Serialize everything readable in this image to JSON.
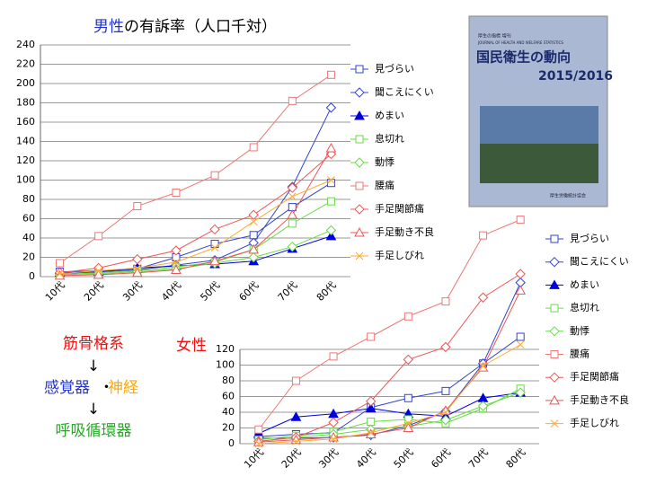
{
  "chart_data": [
    {
      "type": "line",
      "title_parts": [
        "男性",
        "の有訴率（人口千対）"
      ],
      "categories": [
        "10代",
        "20代",
        "30代",
        "40代",
        "50代",
        "60代",
        "70代",
        "80代"
      ],
      "ylim": [
        0,
        240
      ],
      "yticks": [
        0,
        20,
        40,
        60,
        80,
        100,
        120,
        140,
        160,
        180,
        200,
        220,
        240
      ],
      "grid": true,
      "legend": "right",
      "series": [
        {
          "name": "見づらい",
          "color": "#3344cc",
          "marker": "square",
          "values": [
            5,
            6,
            8,
            20,
            34,
            43,
            72,
            97
          ]
        },
        {
          "name": "聞こえにくい",
          "color": "#3344cc",
          "marker": "diamond",
          "values": [
            3,
            5,
            7,
            12,
            17,
            35,
            93,
            175
          ]
        },
        {
          "name": "めまい",
          "color": "#0000dd",
          "marker": "triangle-filled",
          "values": [
            4,
            5,
            9,
            11,
            13,
            16,
            29,
            42
          ]
        },
        {
          "name": "息切れ",
          "color": "#66dd44",
          "marker": "square",
          "values": [
            2,
            4,
            6,
            10,
            15,
            28,
            55,
            78
          ]
        },
        {
          "name": "動悸",
          "color": "#66dd44",
          "marker": "diamond",
          "values": [
            2,
            3,
            5,
            8,
            14,
            20,
            31,
            48
          ]
        },
        {
          "name": "腰痛",
          "color": "#ee7777",
          "marker": "square",
          "values": [
            14,
            42,
            73,
            87,
            105,
            134,
            182,
            209
          ]
        },
        {
          "name": "手足関節痛",
          "color": "#ee5555",
          "marker": "diamond",
          "values": [
            4,
            9,
            18,
            27,
            49,
            64,
            92,
            127
          ]
        },
        {
          "name": "手足動き不良",
          "color": "#ee5555",
          "marker": "triangle",
          "values": [
            1,
            2,
            4,
            7,
            16,
            28,
            64,
            133
          ]
        },
        {
          "name": "手足しびれ",
          "color": "#ffaa33",
          "marker": "x",
          "values": [
            3,
            6,
            9,
            15,
            30,
            57,
            83,
            100
          ]
        }
      ]
    },
    {
      "type": "line",
      "title_parts": [
        "女性"
      ],
      "categories": [
        "10代",
        "20代",
        "30代",
        "40代",
        "50代",
        "60代",
        "70代",
        "80代"
      ],
      "ylim": [
        0,
        280
      ],
      "yticks": [
        0,
        20,
        40,
        60,
        80,
        100,
        120
      ],
      "grid": true,
      "legend": "right",
      "series": [
        {
          "name": "見づらい",
          "color": "#3344cc",
          "marker": "square",
          "values": [
            9,
            12,
            14,
            46,
            58,
            67,
            102,
            136
          ]
        },
        {
          "name": "聞こえにくい",
          "color": "#3344cc",
          "marker": "diamond",
          "values": [
            7,
            7,
            8,
            11,
            23,
            41,
            102,
            205
          ]
        },
        {
          "name": "めまい",
          "color": "#0000dd",
          "marker": "triangle-filled",
          "values": [
            13,
            34,
            38,
            45,
            38,
            35,
            58,
            65
          ]
        },
        {
          "name": "息切れ",
          "color": "#66dd44",
          "marker": "square",
          "values": [
            5,
            10,
            15,
            28,
            31,
            26,
            45,
            70
          ]
        },
        {
          "name": "動悸",
          "color": "#66dd44",
          "marker": "diamond",
          "values": [
            3,
            8,
            12,
            18,
            22,
            30,
            48,
            65
          ]
        },
        {
          "name": "腰痛",
          "color": "#ee7777",
          "marker": "square",
          "values": [
            18,
            80,
            111,
            136,
            162,
            181,
            265,
            285
          ]
        },
        {
          "name": "手足関節痛",
          "color": "#ee5555",
          "marker": "diamond",
          "values": [
            3,
            8,
            27,
            54,
            107,
            123,
            186,
            216
          ]
        },
        {
          "name": "手足動き不良",
          "color": "#ee5555",
          "marker": "triangle",
          "values": [
            2,
            5,
            8,
            12,
            20,
            42,
            97,
            195
          ]
        },
        {
          "name": "手足しびれ",
          "color": "#ffaa33",
          "marker": "x",
          "values": [
            0,
            3,
            6,
            14,
            26,
            40,
            99,
            126
          ]
        }
      ]
    }
  ],
  "notes": {
    "line1": "筋骨格系",
    "arrow1": "↓",
    "line2a": "感覚器",
    "dot": "・",
    "line2b": "神経",
    "arrow2": "↓",
    "line3": "呼吸循環器"
  },
  "cover": {
    "top": "厚生の指標 増刊",
    "subtitle": "JOURNAL OF HEALTH AND WELFARE STATISTICS",
    "title": "国民衛生の動向",
    "year": "2015/2016",
    "publisher": "厚生労働統計協会"
  }
}
